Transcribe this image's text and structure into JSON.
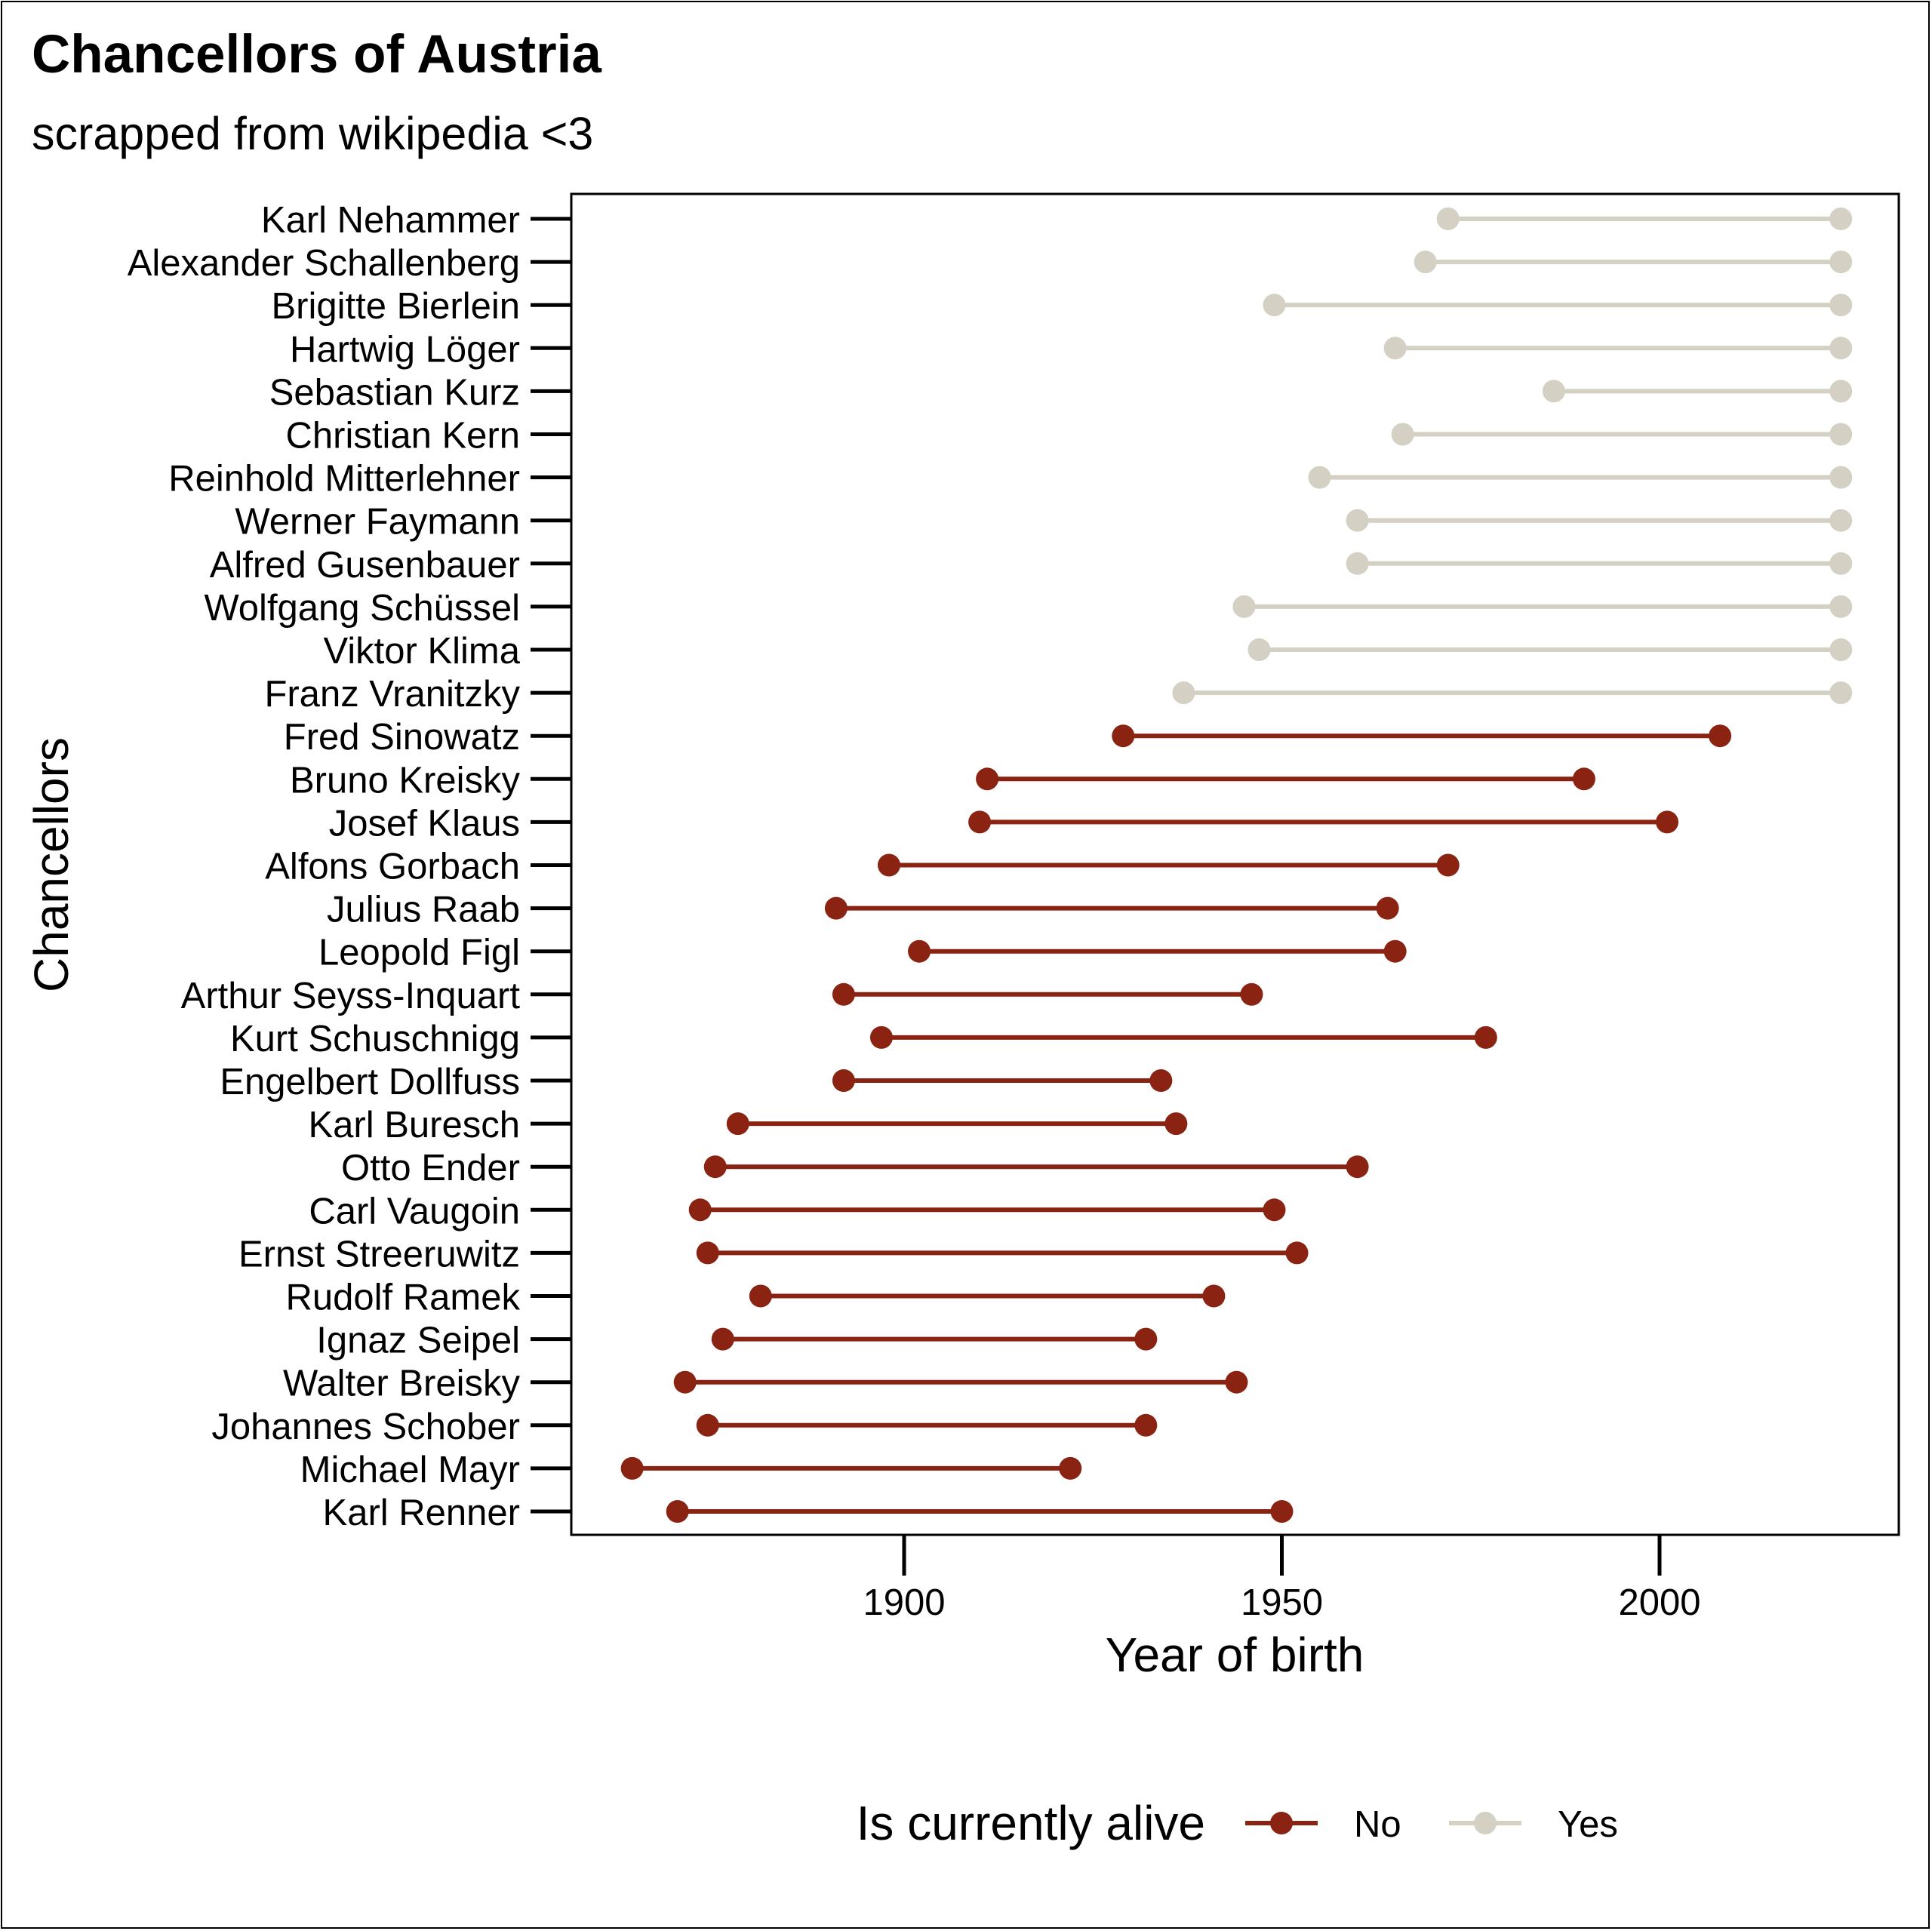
{
  "chart_data": {
    "type": "dumbbell",
    "title": "Chancellors of Austria",
    "subtitle": "scrapped from wikipedia <3",
    "xlabel": "Year of birth",
    "ylabel": "Chancellors",
    "x_ticks": [
      1900,
      1950,
      2000
    ],
    "xlim": [
      1856,
      2032
    ],
    "grid": false,
    "legend": {
      "title": "Is currently alive",
      "position": "bottom",
      "items": [
        {
          "label": "No",
          "color": "#8b2312"
        },
        {
          "label": "Yes",
          "color": "#d4d0c4"
        }
      ]
    },
    "series": [
      {
        "name": "Karl Nehammer",
        "start": 1972,
        "end": 2024,
        "alive": "Yes"
      },
      {
        "name": "Alexander Schallenberg",
        "start": 1969,
        "end": 2024,
        "alive": "Yes"
      },
      {
        "name": "Brigitte Bierlein",
        "start": 1949,
        "end": 2024,
        "alive": "Yes"
      },
      {
        "name": "Hartwig Löger",
        "start": 1965,
        "end": 2024,
        "alive": "Yes"
      },
      {
        "name": "Sebastian Kurz",
        "start": 1986,
        "end": 2024,
        "alive": "Yes"
      },
      {
        "name": "Christian Kern",
        "start": 1966,
        "end": 2024,
        "alive": "Yes"
      },
      {
        "name": "Reinhold Mitterlehner",
        "start": 1955,
        "end": 2024,
        "alive": "Yes"
      },
      {
        "name": "Werner Faymann",
        "start": 1960,
        "end": 2024,
        "alive": "Yes"
      },
      {
        "name": "Alfred Gusenbauer",
        "start": 1960,
        "end": 2024,
        "alive": "Yes"
      },
      {
        "name": "Wolfgang Schüssel",
        "start": 1945,
        "end": 2024,
        "alive": "Yes"
      },
      {
        "name": "Viktor Klima",
        "start": 1947,
        "end": 2024,
        "alive": "Yes"
      },
      {
        "name": "Franz Vranitzky",
        "start": 1937,
        "end": 2024,
        "alive": "Yes"
      },
      {
        "name": "Fred Sinowatz",
        "start": 1929,
        "end": 2008,
        "alive": "No"
      },
      {
        "name": "Bruno Kreisky",
        "start": 1911,
        "end": 1990,
        "alive": "No"
      },
      {
        "name": "Josef Klaus",
        "start": 1910,
        "end": 2001,
        "alive": "No"
      },
      {
        "name": "Alfons Gorbach",
        "start": 1898,
        "end": 1972,
        "alive": "No"
      },
      {
        "name": "Julius Raab",
        "start": 1891,
        "end": 1964,
        "alive": "No"
      },
      {
        "name": "Leopold Figl",
        "start": 1902,
        "end": 1965,
        "alive": "No"
      },
      {
        "name": "Arthur Seyss-Inquart",
        "start": 1892,
        "end": 1946,
        "alive": "No"
      },
      {
        "name": "Kurt Schuschnigg",
        "start": 1897,
        "end": 1977,
        "alive": "No"
      },
      {
        "name": "Engelbert Dollfuss",
        "start": 1892,
        "end": 1934,
        "alive": "No"
      },
      {
        "name": "Karl Buresch",
        "start": 1878,
        "end": 1936,
        "alive": "No"
      },
      {
        "name": "Otto Ender",
        "start": 1875,
        "end": 1960,
        "alive": "No"
      },
      {
        "name": "Carl Vaugoin",
        "start": 1873,
        "end": 1949,
        "alive": "No"
      },
      {
        "name": "Ernst Streeruwitz",
        "start": 1874,
        "end": 1952,
        "alive": "No"
      },
      {
        "name": "Rudolf Ramek",
        "start": 1881,
        "end": 1941,
        "alive": "No"
      },
      {
        "name": "Ignaz Seipel",
        "start": 1876,
        "end": 1932,
        "alive": "No"
      },
      {
        "name": "Walter Breisky",
        "start": 1871,
        "end": 1944,
        "alive": "No"
      },
      {
        "name": "Johannes Schober",
        "start": 1874,
        "end": 1932,
        "alive": "No"
      },
      {
        "name": "Michael Mayr",
        "start": 1864,
        "end": 1922,
        "alive": "No"
      },
      {
        "name": "Karl Renner",
        "start": 1870,
        "end": 1950,
        "alive": "No"
      }
    ]
  }
}
